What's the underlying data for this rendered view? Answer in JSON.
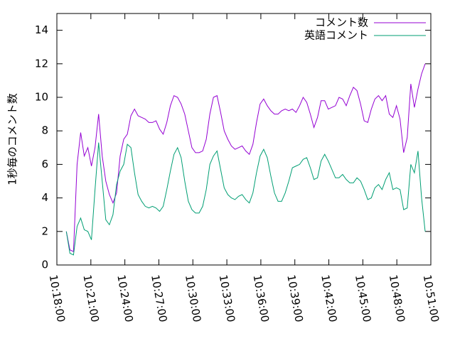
{
  "chart_data": {
    "type": "line",
    "ylabel": "1秒毎のコメント数",
    "legend": "top right",
    "xlim": [
      "10:18:00",
      "10:51:00"
    ],
    "xticks": [
      "10:18:00",
      "10:21:00",
      "10:24:00",
      "10:27:00",
      "10:30:00",
      "10:33:00",
      "10:36:00",
      "10:39:00",
      "10:42:00",
      "10:45:00",
      "10:48:00",
      "10:51:00"
    ],
    "ylim": [
      0,
      15
    ],
    "yticks": [
      0,
      2,
      4,
      6,
      8,
      10,
      12,
      14
    ],
    "x": [
      "10:18:50",
      "10:19:09",
      "10:19:28",
      "10:19:47",
      "10:20:06",
      "10:20:25",
      "10:20:44",
      "10:21:03",
      "10:21:22",
      "10:21:41",
      "10:22:00",
      "10:22:19",
      "10:22:38",
      "10:22:57",
      "10:23:16",
      "10:23:35",
      "10:23:54",
      "10:24:13",
      "10:24:32",
      "10:24:51",
      "10:25:10",
      "10:25:29",
      "10:25:48",
      "10:26:07",
      "10:26:26",
      "10:26:45",
      "10:27:04",
      "10:27:23",
      "10:27:42",
      "10:28:01",
      "10:28:20",
      "10:28:39",
      "10:28:58",
      "10:29:17",
      "10:29:36",
      "10:29:55",
      "10:30:14",
      "10:30:33",
      "10:30:52",
      "10:31:11",
      "10:31:30",
      "10:31:49",
      "10:32:08",
      "10:32:27",
      "10:32:46",
      "10:33:05",
      "10:33:24",
      "10:33:43",
      "10:34:02",
      "10:34:21",
      "10:34:40",
      "10:34:59",
      "10:35:18",
      "10:35:37",
      "10:35:56",
      "10:36:15",
      "10:36:34",
      "10:36:53",
      "10:37:12",
      "10:37:31",
      "10:37:50",
      "10:38:09",
      "10:38:28",
      "10:38:47",
      "10:39:06",
      "10:39:25",
      "10:39:44",
      "10:40:03",
      "10:40:22",
      "10:40:41",
      "10:41:00",
      "10:41:19",
      "10:41:38",
      "10:41:57",
      "10:42:16",
      "10:42:35",
      "10:42:54",
      "10:43:13",
      "10:43:32",
      "10:43:51",
      "10:44:10",
      "10:44:29",
      "10:44:48",
      "10:45:07",
      "10:45:26",
      "10:45:45",
      "10:46:04",
      "10:46:23",
      "10:46:42",
      "10:47:01",
      "10:47:20",
      "10:47:39",
      "10:47:58",
      "10:48:17",
      "10:48:36",
      "10:48:55",
      "10:49:14",
      "10:49:33",
      "10:49:52",
      "10:50:11",
      "10:50:30"
    ],
    "series": [
      {
        "name": "コメント数",
        "color": "#9400d3",
        "values": [
          2,
          0.9,
          0.8,
          6.0,
          7.9,
          6.5,
          7.0,
          5.9,
          7.0,
          9.0,
          6.5,
          5.0,
          4.2,
          3.7,
          4.3,
          6.5,
          7.5,
          7.8,
          8.9,
          9.3,
          8.9,
          8.8,
          8.7,
          8.5,
          8.5,
          8.6,
          8.1,
          7.8,
          8.5,
          9.5,
          10.1,
          10.0,
          9.6,
          9.0,
          8.0,
          7.0,
          6.7,
          6.7,
          6.8,
          7.5,
          9.0,
          10.0,
          10.1,
          9.1,
          8.0,
          7.5,
          7.1,
          6.9,
          7.0,
          7.1,
          6.8,
          6.6,
          7.2,
          8.5,
          9.6,
          9.9,
          9.5,
          9.2,
          9.0,
          9.0,
          9.2,
          9.3,
          9.2,
          9.3,
          9.1,
          9.5,
          10.0,
          9.7,
          9.0,
          8.2,
          8.8,
          9.8,
          9.8,
          9.3,
          9.4,
          9.5,
          10.0,
          9.9,
          9.5,
          10.1,
          10.6,
          10.4,
          9.6,
          8.6,
          8.5,
          9.3,
          9.9,
          10.1,
          9.8,
          10.1,
          9.0,
          8.8,
          9.5,
          8.7,
          6.7,
          7.6,
          10.8,
          9.4,
          10.5,
          11.4,
          12.0
        ]
      },
      {
        "name": "英語コメント",
        "color": "#009e73",
        "values": [
          2,
          0.7,
          0.6,
          2.3,
          2.8,
          2.1,
          2.0,
          1.5,
          4.5,
          7.3,
          5.0,
          2.7,
          2.4,
          3.0,
          4.8,
          5.6,
          6.0,
          7.2,
          7.0,
          5.5,
          4.2,
          3.8,
          3.5,
          3.4,
          3.5,
          3.4,
          3.2,
          3.5,
          4.5,
          5.6,
          6.6,
          7.0,
          6.4,
          5.0,
          3.8,
          3.3,
          3.1,
          3.1,
          3.5,
          4.5,
          6.0,
          6.5,
          6.8,
          5.7,
          4.6,
          4.2,
          4.0,
          3.9,
          4.1,
          4.2,
          3.9,
          3.7,
          4.3,
          5.5,
          6.5,
          6.9,
          6.4,
          5.3,
          4.3,
          3.8,
          3.8,
          4.3,
          5.0,
          5.8,
          5.9,
          6.0,
          6.3,
          6.4,
          5.8,
          5.1,
          5.2,
          6.2,
          6.6,
          6.2,
          5.7,
          5.2,
          5.2,
          5.4,
          5.1,
          4.9,
          4.9,
          5.2,
          5.0,
          4.5,
          3.9,
          4.0,
          4.6,
          4.8,
          4.5,
          5.1,
          5.5,
          4.5,
          4.6,
          4.5,
          3.3,
          3.4,
          6.0,
          5.5,
          6.8,
          4.0,
          2.0
        ]
      }
    ]
  }
}
